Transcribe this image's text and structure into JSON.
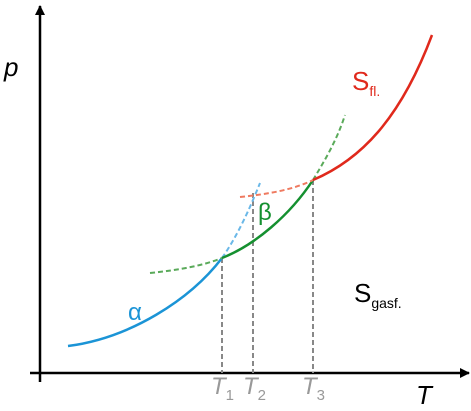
{
  "axes": {
    "y_label": "p",
    "x_label": "T"
  },
  "phases": {
    "alpha": "α",
    "beta": "β",
    "fluid": {
      "main": "S",
      "sub": "fl."
    },
    "gas": {
      "main": "S",
      "sub": "gasf."
    }
  },
  "temperatures": [
    {
      "main": "T",
      "sub": "1"
    },
    {
      "main": "T",
      "sub": "2"
    },
    {
      "main": "T",
      "sub": "3"
    }
  ]
}
